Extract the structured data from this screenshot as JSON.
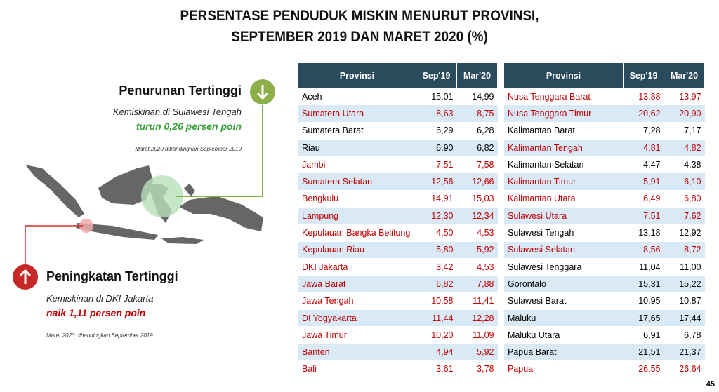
{
  "header": {
    "title_line1": "PERSENTASE PENDUDUK MISKIN MENURUT PROVINSI,",
    "title_line2": "SEPTEMBER 2019 DAN MARET 2020 (%)"
  },
  "callouts": [
    {
      "heading": "Penurunan Tertinggi",
      "text": "Kemiskinan di Sulawesi Tengah",
      "highlight": "turun 0,26 persen poin",
      "note": "Maret 2020 dibandingkan September 2019"
    },
    {
      "heading": "Peningkatan Tertinggi",
      "text": "Kemiskinan di DKI Jakarta",
      "highlight": "naik 1,11 persen poin",
      "note": "Maret 2020 dibandingkan September 2019"
    }
  ],
  "tables": [
    {
      "columns": [
        "Provinsi",
        "Sep'19",
        "Mar'20"
      ],
      "rows": [
        [
          "Aceh",
          "15,01",
          "14,99"
        ],
        [
          "Sumatera Utara",
          "8,63",
          "8,75"
        ],
        [
          "Sumatera Barat",
          "6,29",
          "6,28"
        ],
        [
          "Riau",
          "6,90",
          "6,82"
        ],
        [
          "Jambi",
          "7,51",
          "7,58"
        ],
        [
          "Sumatera Selatan",
          "12,56",
          "12,66"
        ],
        [
          "Bengkulu",
          "14,91",
          "15,03"
        ],
        [
          "Lampung",
          "12,30",
          "12,34"
        ],
        [
          "Kepulauan Bangka Belitung",
          "4,50",
          "4,53"
        ],
        [
          "Kepulauan Riau",
          "5,80",
          "5,92"
        ],
        [
          "DKI Jakarta",
          "3,42",
          "4,53"
        ],
        [
          "Jawa Barat",
          "6,82",
          "7,88"
        ],
        [
          "Jawa Tengah",
          "10,58",
          "11,41"
        ],
        [
          "DI Yogyakarta",
          "11,44",
          "12,28"
        ],
        [
          "Jawa Timur",
          "10,20",
          "11,09"
        ],
        [
          "Banten",
          "4,94",
          "5,92"
        ],
        [
          "Bali",
          "3,61",
          "3,78"
        ]
      ]
    },
    {
      "columns": [
        "Provinsi",
        "Sep'19",
        "Mar'20"
      ],
      "rows": [
        [
          "Nusa Tenggara Barat",
          "13,88",
          "13,97"
        ],
        [
          "Nusa Tenggara Timur",
          "20,62",
          "20,90"
        ],
        [
          "Kalimantan Barat",
          "7,28",
          "7,17"
        ],
        [
          "Kalimantan Tengah",
          "4,81",
          "4,82"
        ],
        [
          "Kalimantan Selatan",
          "4,47",
          "4,38"
        ],
        [
          "Kalimantan Timur",
          "5,91",
          "6,10"
        ],
        [
          "Kalimantan Utara",
          "6,49",
          "6,80"
        ],
        [
          "Sulawesi Utara",
          "7,51",
          "7,62"
        ],
        [
          "Sulawesi Tengah",
          "13,18",
          "12,92"
        ],
        [
          "Sulawesi Selatan",
          "8,56",
          "8,72"
        ],
        [
          "Sulawesi Tenggara",
          "11,04",
          "11,00"
        ],
        [
          "Gorontalo",
          "15,31",
          "15,22"
        ],
        [
          "Sulawesi Barat",
          "10,95",
          "10,87"
        ],
        [
          "Maluku",
          "17,65",
          "17,44"
        ],
        [
          "Maluku Utara",
          "6,91",
          "6,78"
        ],
        [
          "Papua Barat",
          "21,51",
          "21,37"
        ],
        [
          "Papua",
          "26,55",
          "26,64"
        ]
      ]
    }
  ],
  "page_number": "45"
}
